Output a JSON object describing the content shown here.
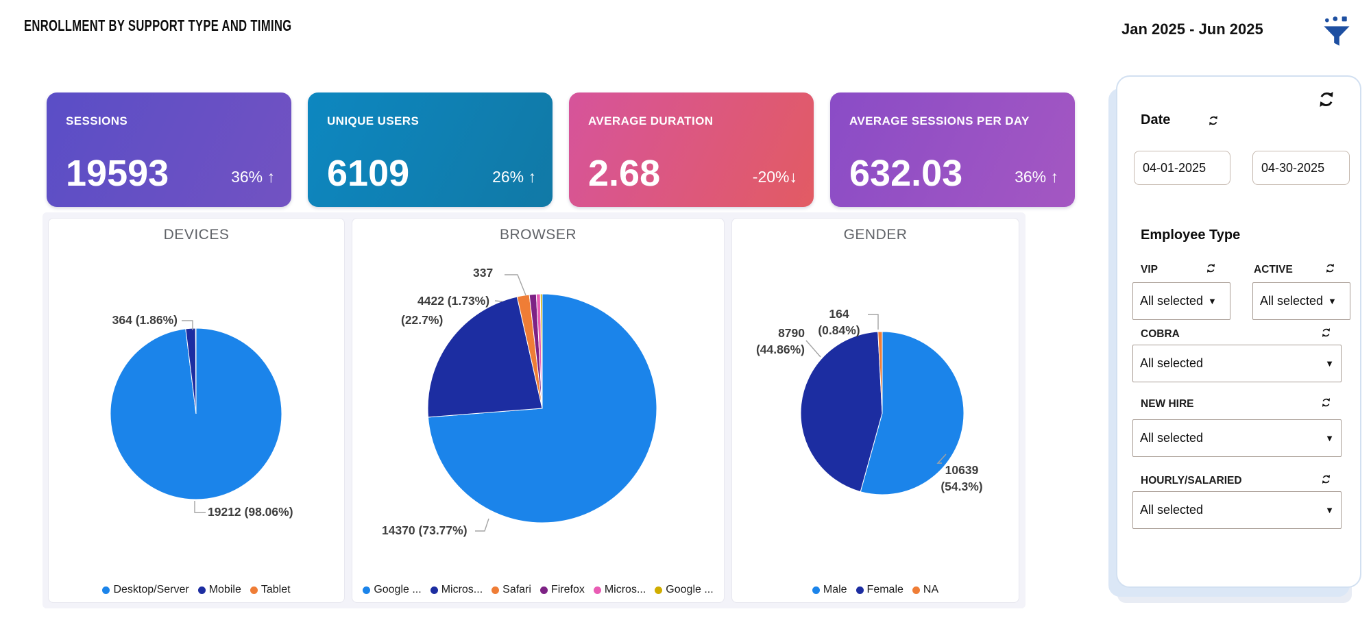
{
  "header": {
    "title": "ENROLLMENT BY SUPPORT TYPE AND TIMING",
    "date_range": "Jan 2025 - Jun 2025",
    "filter_icon": "funnel-icon"
  },
  "kpi_cards": [
    {
      "label": "SESSIONS",
      "value": "19593",
      "delta": "36% ↑",
      "gradient": [
        "#5a4ec6",
        "#7252c2"
      ]
    },
    {
      "label": "UNIQUE USERS",
      "value": "6109",
      "delta": "26% ↑",
      "gradient": [
        "#0d87c0",
        "#1179a6"
      ]
    },
    {
      "label": "AVERAGE DURATION",
      "value": "2.68",
      "delta": "-20%↓",
      "gradient": [
        "#d6549b",
        "#e25b63"
      ]
    },
    {
      "label": "AVERAGE SESSIONS PER DAY",
      "value": "632.03",
      "delta": "36% ↑",
      "gradient": [
        "#8a4cc6",
        "#a457c2"
      ]
    }
  ],
  "chart_data": [
    {
      "type": "pie",
      "title": "DEVICES",
      "series": [
        {
          "name": "Desktop/Server",
          "value": 19212,
          "pct_label": "98.06%",
          "color": "#1b84ea"
        },
        {
          "name": "Mobile",
          "value": 364,
          "pct_label": "1.86%",
          "color": "#1c2da1"
        },
        {
          "name": "Tablet",
          "value": 17,
          "estimated": true,
          "color": "#ef7d36"
        }
      ],
      "labels_display": [
        "364 (1.86%)",
        "19212 (98.06%)"
      ],
      "legend_position": "bottom"
    },
    {
      "type": "pie",
      "title": "BROWSER",
      "series": [
        {
          "name": "Google ...",
          "value": 14370,
          "pct_label": "73.77%",
          "color": "#1b84ea"
        },
        {
          "name": "Micros...",
          "value": 4422,
          "pct_label": "22.7%",
          "color": "#1c2da1"
        },
        {
          "name": "Safari",
          "value": 337,
          "pct_label": "1.73%",
          "color": "#ef7d36"
        },
        {
          "name": "Firefox",
          "value": 190,
          "estimated": true,
          "color": "#7d2285"
        },
        {
          "name": "Micros...",
          "value": 110,
          "estimated": true,
          "color": "#e95cb4"
        },
        {
          "name": "Google ...",
          "value": 51,
          "estimated": true,
          "color": "#d0ad00"
        }
      ],
      "labels_display": [
        "337",
        "4422 (1.73%)",
        "(22.7%)",
        "14370 (73.77%)"
      ],
      "legend_position": "bottom"
    },
    {
      "type": "pie",
      "title": "GENDER",
      "series": [
        {
          "name": "Male",
          "value": 10639,
          "pct_label": "54.3%",
          "color": "#1b84ea"
        },
        {
          "name": "Female",
          "value": 8790,
          "pct_label": "44.86%",
          "color": "#1c2da1"
        },
        {
          "name": "NA",
          "value": 164,
          "pct_label": "0.84%",
          "color": "#ef7d36"
        }
      ],
      "labels_display": [
        "164",
        "(0.84%)",
        "8790",
        "(44.86%)",
        "10639",
        "(54.3%)"
      ],
      "legend_position": "bottom"
    }
  ],
  "filter_panel": {
    "reset_icon": "refresh-icon",
    "date": {
      "label": "Date",
      "from": "04-01-2025",
      "to": "04-30-2025"
    },
    "employee_type": {
      "heading": "Employee Type",
      "slicers": [
        {
          "label": "VIP",
          "value": "All selected"
        },
        {
          "label": "ACTIVE",
          "value": "All selected"
        },
        {
          "label": "COBRA",
          "value": "All selected"
        },
        {
          "label": "NEW HIRE",
          "value": "All selected"
        },
        {
          "label": "HOURLY/SALARIED",
          "value": "All selected"
        }
      ]
    }
  }
}
